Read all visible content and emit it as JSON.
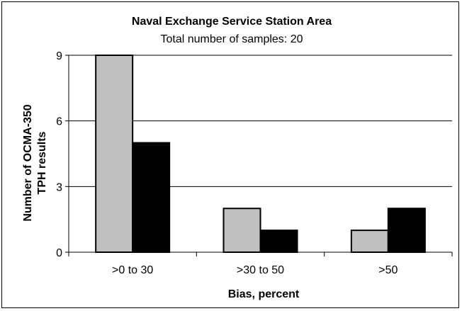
{
  "chart_data": {
    "type": "bar",
    "title": "Naval Exchange Service Station Area",
    "subtitle": "Total number of samples: 20",
    "xlabel": "Bias, percent",
    "ylabel_line1": "Number of OCMA-350",
    "ylabel_line2": "TPH results",
    "categories": [
      ">0 to 30",
      ">30 to 50",
      ">50"
    ],
    "series": [
      {
        "values": [
          9,
          2,
          1
        ],
        "color": "#c0c0c0"
      },
      {
        "values": [
          5,
          1,
          2
        ],
        "color": "#000000"
      }
    ],
    "ylim": [
      0,
      9
    ],
    "yticks": [
      "0",
      "3",
      "6",
      "9"
    ],
    "ytick_values": [
      0,
      3,
      6,
      9
    ],
    "grid": true,
    "legend": "none"
  }
}
